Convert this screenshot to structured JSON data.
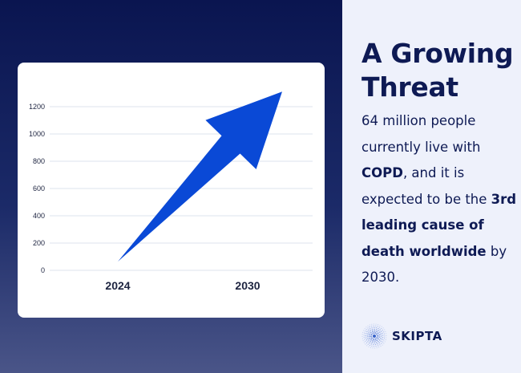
{
  "headline": "A Growing Threat",
  "body": {
    "part1": "64 million people currently live with ",
    "term": "COPD",
    "part2": ", and it is expected to be the ",
    "highlight": "3rd leading cause of death worldwide",
    "part3": " by 2030."
  },
  "brand": {
    "name": "SKIPTA",
    "icon": "starburst-logo-icon"
  },
  "colors": {
    "background_top": "#0a1550",
    "background_bottom": "#4a5588",
    "arrow": "#0a49d6",
    "text": "#0e1a54",
    "panel": "#eef1fb"
  },
  "chart_data": {
    "type": "line",
    "categories": [
      "2024",
      "2030"
    ],
    "series": [
      {
        "values": [
          64,
          1310
        ]
      }
    ],
    "y_ticks": [
      0,
      200,
      400,
      600,
      800,
      1000,
      1200
    ],
    "ylim": [
      0,
      1310
    ],
    "grid": true,
    "legend": "none",
    "style": "growth-arrow",
    "title": "",
    "xlabel": "",
    "ylabel": ""
  }
}
